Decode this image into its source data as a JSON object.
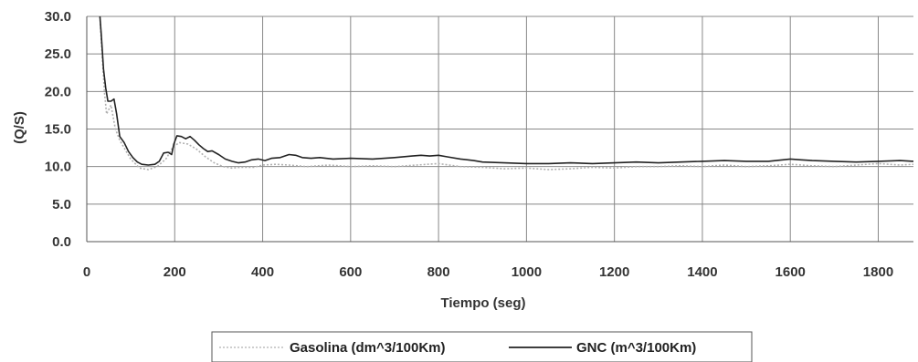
{
  "chart_data": {
    "type": "line",
    "title": "",
    "xlabel": "Tiempo (seg)",
    "ylabel": "(Q/S)",
    "xlim": [
      0,
      1880
    ],
    "ylim": [
      0,
      30
    ],
    "x_ticks": [
      "0",
      "200",
      "400",
      "600",
      "800",
      "1000",
      "1200",
      "1400",
      "1600",
      "1800"
    ],
    "y_ticks": [
      "0.0",
      "5.0",
      "10.0",
      "15.0",
      "20.0",
      "25.0",
      "30.0"
    ],
    "grid": true,
    "legend_position": "bottom",
    "series": [
      {
        "name": "Gasolina (dm^3/100Km)",
        "color": "#b0b0b0",
        "style": "dotted",
        "points": [
          [
            30,
            30.0
          ],
          [
            35,
            25.0
          ],
          [
            40,
            20.0
          ],
          [
            45,
            17.0
          ],
          [
            55,
            18.2
          ],
          [
            65,
            15.0
          ],
          [
            75,
            13.5
          ],
          [
            85,
            12.5
          ],
          [
            100,
            11.0
          ],
          [
            120,
            9.8
          ],
          [
            140,
            9.6
          ],
          [
            160,
            10.0
          ],
          [
            180,
            11.0
          ],
          [
            195,
            12.5
          ],
          [
            210,
            13.2
          ],
          [
            230,
            13.0
          ],
          [
            250,
            12.3
          ],
          [
            270,
            11.3
          ],
          [
            290,
            10.5
          ],
          [
            310,
            10.0
          ],
          [
            330,
            9.8
          ],
          [
            350,
            9.9
          ],
          [
            380,
            9.9
          ],
          [
            400,
            10.2
          ],
          [
            430,
            10.3
          ],
          [
            460,
            10.2
          ],
          [
            500,
            10.0
          ],
          [
            550,
            10.2
          ],
          [
            600,
            10.0
          ],
          [
            650,
            10.1
          ],
          [
            700,
            10.0
          ],
          [
            750,
            10.2
          ],
          [
            800,
            10.4
          ],
          [
            850,
            10.0
          ],
          [
            900,
            9.9
          ],
          [
            950,
            9.7
          ],
          [
            1000,
            9.8
          ],
          [
            1050,
            9.6
          ],
          [
            1100,
            9.7
          ],
          [
            1150,
            9.9
          ],
          [
            1200,
            9.8
          ],
          [
            1250,
            10.0
          ],
          [
            1300,
            10.0
          ],
          [
            1350,
            10.1
          ],
          [
            1400,
            10.0
          ],
          [
            1450,
            10.2
          ],
          [
            1500,
            10.0
          ],
          [
            1550,
            10.1
          ],
          [
            1600,
            10.3
          ],
          [
            1650,
            10.1
          ],
          [
            1700,
            10.0
          ],
          [
            1750,
            10.2
          ],
          [
            1800,
            10.4
          ],
          [
            1850,
            10.2
          ],
          [
            1880,
            10.3
          ]
        ]
      },
      {
        "name": "GNC (m^3/100Km)",
        "color": "#222222",
        "style": "solid",
        "points": [
          [
            30,
            30.0
          ],
          [
            33,
            27.5
          ],
          [
            38,
            23.0
          ],
          [
            43,
            20.5
          ],
          [
            48,
            18.7
          ],
          [
            55,
            18.7
          ],
          [
            62,
            19.0
          ],
          [
            68,
            17.0
          ],
          [
            75,
            14.0
          ],
          [
            85,
            13.2
          ],
          [
            95,
            12.0
          ],
          [
            105,
            11.2
          ],
          [
            115,
            10.6
          ],
          [
            125,
            10.3
          ],
          [
            140,
            10.2
          ],
          [
            155,
            10.3
          ],
          [
            165,
            10.7
          ],
          [
            175,
            11.8
          ],
          [
            185,
            11.9
          ],
          [
            193,
            11.6
          ],
          [
            198,
            13.0
          ],
          [
            205,
            14.1
          ],
          [
            215,
            14.0
          ],
          [
            225,
            13.7
          ],
          [
            235,
            14.0
          ],
          [
            245,
            13.5
          ],
          [
            255,
            12.9
          ],
          [
            265,
            12.4
          ],
          [
            275,
            12.0
          ],
          [
            285,
            12.1
          ],
          [
            300,
            11.6
          ],
          [
            315,
            11.0
          ],
          [
            330,
            10.7
          ],
          [
            345,
            10.5
          ],
          [
            360,
            10.6
          ],
          [
            375,
            10.9
          ],
          [
            390,
            11.0
          ],
          [
            405,
            10.8
          ],
          [
            420,
            11.1
          ],
          [
            440,
            11.2
          ],
          [
            460,
            11.6
          ],
          [
            475,
            11.5
          ],
          [
            490,
            11.2
          ],
          [
            510,
            11.1
          ],
          [
            530,
            11.2
          ],
          [
            560,
            11.0
          ],
          [
            600,
            11.1
          ],
          [
            650,
            11.0
          ],
          [
            700,
            11.2
          ],
          [
            740,
            11.4
          ],
          [
            760,
            11.5
          ],
          [
            780,
            11.4
          ],
          [
            800,
            11.5
          ],
          [
            820,
            11.3
          ],
          [
            850,
            11.0
          ],
          [
            880,
            10.8
          ],
          [
            900,
            10.6
          ],
          [
            950,
            10.5
          ],
          [
            1000,
            10.4
          ],
          [
            1050,
            10.4
          ],
          [
            1100,
            10.5
          ],
          [
            1150,
            10.4
          ],
          [
            1200,
            10.5
          ],
          [
            1250,
            10.6
          ],
          [
            1300,
            10.5
          ],
          [
            1350,
            10.6
          ],
          [
            1400,
            10.7
          ],
          [
            1450,
            10.8
          ],
          [
            1500,
            10.7
          ],
          [
            1550,
            10.7
          ],
          [
            1600,
            11.0
          ],
          [
            1625,
            10.9
          ],
          [
            1650,
            10.8
          ],
          [
            1700,
            10.7
          ],
          [
            1750,
            10.6
          ],
          [
            1800,
            10.7
          ],
          [
            1850,
            10.8
          ],
          [
            1880,
            10.7
          ]
        ]
      }
    ]
  }
}
